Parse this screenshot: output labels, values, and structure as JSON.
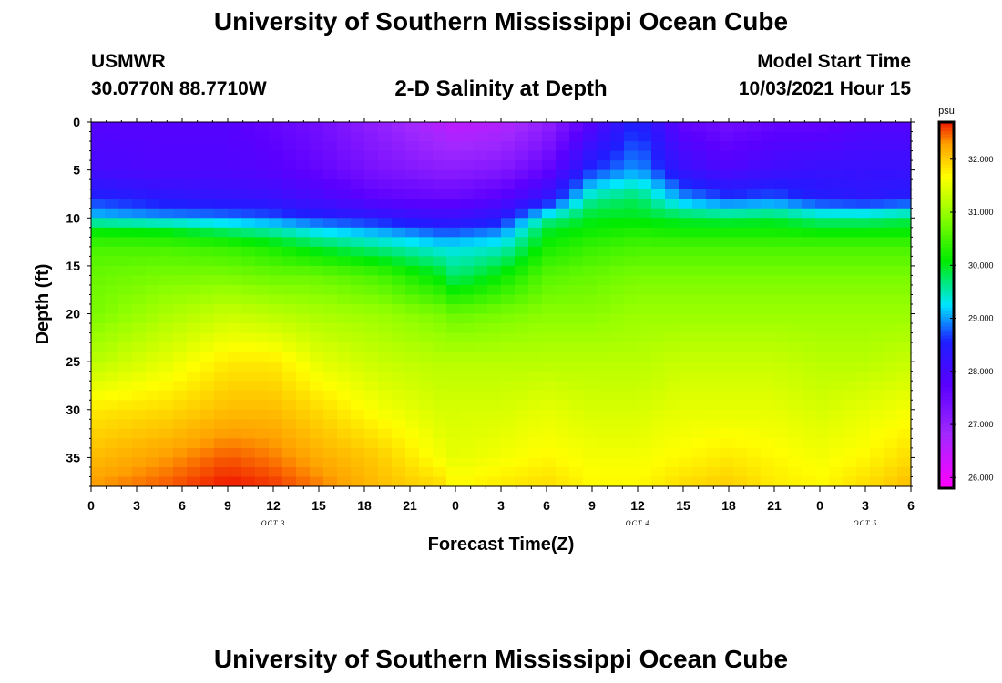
{
  "header": {
    "title": "University of Southern Mississippi Ocean Cube",
    "station": "USMWR",
    "coords": "30.0770N  88.7710W",
    "chart_title": "2-D Salinity at Depth",
    "start_label": "Model Start Time",
    "start_value": "10/03/2021 Hour 15"
  },
  "footer": {
    "title": "University of Southern Mississippi Ocean Cube"
  },
  "chart_data": {
    "type": "heatmap",
    "title": "2-D Salinity at Depth",
    "xlabel": "Forecast Time(Z)",
    "ylabel": "Depth (ft)",
    "x_hours": [
      0,
      3,
      6,
      9,
      12,
      15,
      18,
      21,
      24,
      27,
      30,
      33,
      36,
      39,
      42,
      45,
      48,
      51,
      54
    ],
    "xtick_labels": [
      "0",
      "3",
      "6",
      "9",
      "12",
      "15",
      "18",
      "21",
      "0",
      "3",
      "6",
      "9",
      "12",
      "15",
      "18",
      "21",
      "0",
      "3",
      "6"
    ],
    "xlim": [
      0,
      54
    ],
    "day_labels": [
      {
        "hour": 12,
        "text": "OCT 3"
      },
      {
        "hour": 36,
        "text": "OCT 4"
      },
      {
        "hour": 51,
        "text": "OCT 5"
      }
    ],
    "yticks": [
      0,
      5,
      10,
      15,
      20,
      25,
      30,
      35
    ],
    "ytick_labels": [
      "0",
      "5",
      "10",
      "15",
      "20",
      "25",
      "30",
      "35"
    ],
    "ylim": [
      0,
      38
    ],
    "y_inverted": true,
    "colorbar": {
      "unit": "psu",
      "min": 25.8,
      "max": 32.7,
      "ticks": [
        26,
        27,
        28,
        29,
        30,
        31,
        32
      ],
      "tick_labels": [
        "26.000",
        "27.000",
        "28.000",
        "29.000",
        "30.000",
        "31.000",
        "32.000"
      ],
      "colormap": "rainbow: magenta-purple-blue-cyan-green-yellow-orange-red"
    },
    "profiles": {
      "depths": [
        0,
        5,
        8,
        10,
        11,
        13,
        16,
        20,
        25,
        30,
        35,
        38
      ],
      "columns": [
        {
          "hour": 0,
          "values": [
            27.8,
            28.0,
            28.6,
            29.2,
            30.0,
            30.5,
            30.7,
            30.8,
            31.2,
            31.8,
            32.1,
            32.3
          ]
        },
        {
          "hour": 5,
          "values": [
            27.8,
            27.9,
            28.4,
            29.0,
            29.9,
            30.5,
            30.8,
            31.1,
            31.5,
            31.9,
            32.3,
            32.5
          ]
        },
        {
          "hour": 9,
          "values": [
            27.8,
            27.9,
            28.3,
            28.9,
            29.6,
            30.4,
            30.8,
            31.3,
            31.8,
            32.1,
            32.5,
            32.7
          ]
        },
        {
          "hour": 12,
          "values": [
            27.6,
            27.8,
            28.2,
            28.8,
            29.4,
            30.2,
            30.7,
            31.2,
            31.8,
            32.1,
            32.4,
            32.6
          ]
        },
        {
          "hour": 15,
          "values": [
            27.4,
            27.6,
            28.0,
            28.6,
            29.1,
            29.9,
            30.7,
            31.1,
            31.5,
            31.9,
            32.2,
            32.4
          ]
        },
        {
          "hour": 19,
          "values": [
            27.0,
            27.3,
            27.7,
            28.4,
            28.9,
            29.6,
            30.5,
            31.0,
            31.3,
            31.6,
            32.0,
            32.1
          ]
        },
        {
          "hour": 23,
          "values": [
            26.6,
            27.1,
            27.6,
            28.2,
            28.6,
            29.3,
            30.0,
            30.8,
            31.2,
            31.4,
            31.6,
            31.9
          ]
        },
        {
          "hour": 24,
          "values": [
            26.5,
            27.1,
            27.6,
            28.2,
            28.6,
            29.3,
            29.7,
            30.7,
            31.2,
            31.4,
            31.5,
            31.7
          ]
        },
        {
          "hour": 27,
          "values": [
            26.6,
            27.2,
            27.8,
            28.4,
            28.8,
            29.4,
            30.1,
            30.8,
            31.2,
            31.4,
            31.6,
            31.8
          ]
        },
        {
          "hour": 30,
          "values": [
            27.0,
            27.6,
            28.3,
            29.5,
            29.9,
            30.2,
            30.6,
            30.9,
            31.2,
            31.5,
            31.7,
            31.9
          ]
        },
        {
          "hour": 33,
          "values": [
            27.8,
            28.6,
            29.6,
            30.0,
            30.1,
            30.4,
            30.7,
            30.9,
            31.2,
            31.4,
            31.6,
            31.7
          ]
        },
        {
          "hour": 36,
          "values": [
            28.6,
            29.0,
            29.8,
            30.0,
            30.2,
            30.5,
            30.8,
            31.0,
            31.2,
            31.4,
            31.6,
            31.7
          ]
        },
        {
          "hour": 39,
          "values": [
            27.6,
            28.2,
            29.0,
            29.9,
            30.1,
            30.5,
            30.8,
            31.0,
            31.3,
            31.5,
            31.7,
            31.9
          ]
        },
        {
          "hour": 42,
          "values": [
            27.4,
            27.9,
            28.7,
            29.8,
            30.1,
            30.5,
            30.8,
            31.0,
            31.3,
            31.5,
            31.8,
            32.0
          ]
        },
        {
          "hour": 45,
          "values": [
            27.6,
            28.1,
            28.8,
            29.9,
            30.1,
            30.5,
            30.8,
            31.0,
            31.3,
            31.5,
            31.7,
            31.8
          ]
        },
        {
          "hour": 48,
          "values": [
            27.6,
            28.2,
            28.5,
            29.6,
            30.0,
            30.5,
            30.8,
            31.0,
            31.2,
            31.4,
            31.6,
            31.7
          ]
        },
        {
          "hour": 51,
          "values": [
            27.8,
            28.2,
            28.4,
            29.6,
            30.0,
            30.5,
            30.8,
            31.0,
            31.2,
            31.5,
            31.7,
            31.9
          ]
        },
        {
          "hour": 54,
          "values": [
            27.8,
            28.2,
            28.5,
            29.8,
            30.0,
            30.5,
            30.8,
            31.0,
            31.3,
            31.6,
            31.9,
            32.1
          ]
        }
      ]
    }
  }
}
